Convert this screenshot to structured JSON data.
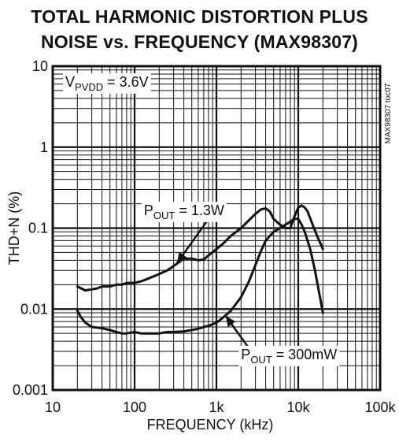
{
  "chart_data": {
    "type": "line",
    "title_line1": "TOTAL HARMONIC DISTORTION PLUS",
    "title_line2": "NOISE vs. FREQUENCY (MAX98307)",
    "xlabel": "FREQUENCY (kHz)",
    "ylabel": "THD+N (%)",
    "x_scale": "log",
    "y_scale": "log",
    "xlim": [
      10,
      100000
    ],
    "ylim": [
      0.001,
      10
    ],
    "x_ticks": [
      {
        "v": 10,
        "label": "10"
      },
      {
        "v": 100,
        "label": "100"
      },
      {
        "v": 1000,
        "label": "1k"
      },
      {
        "v": 10000,
        "label": "10k"
      },
      {
        "v": 100000,
        "label": "100k"
      }
    ],
    "y_ticks": [
      {
        "v": 0.001,
        "label": "0.001"
      },
      {
        "v": 0.01,
        "label": "0.01"
      },
      {
        "v": 0.1,
        "label": "0.1"
      },
      {
        "v": 1,
        "label": "1"
      },
      {
        "v": 10,
        "label": "10"
      }
    ],
    "grid": true,
    "condition": {
      "main": "V",
      "sub": "PVDD",
      "rest": " = 3.6V"
    },
    "side_text": "MAX98307 toc07",
    "series": [
      {
        "name_main": "P",
        "name_sub": "OUT",
        "name_rest": " = 1.3W",
        "points": [
          [
            20,
            0.019
          ],
          [
            25,
            0.017
          ],
          [
            30,
            0.0175
          ],
          [
            35,
            0.018
          ],
          [
            40,
            0.019
          ],
          [
            50,
            0.019
          ],
          [
            60,
            0.02
          ],
          [
            70,
            0.02
          ],
          [
            80,
            0.021
          ],
          [
            100,
            0.021
          ],
          [
            120,
            0.022
          ],
          [
            150,
            0.024
          ],
          [
            200,
            0.027
          ],
          [
            250,
            0.03
          ],
          [
            300,
            0.034
          ],
          [
            350,
            0.038
          ],
          [
            400,
            0.042
          ],
          [
            500,
            0.042
          ],
          [
            600,
            0.04
          ],
          [
            700,
            0.041
          ],
          [
            800,
            0.046
          ],
          [
            1000,
            0.055
          ],
          [
            1200,
            0.064
          ],
          [
            1500,
            0.08
          ],
          [
            2000,
            0.1
          ],
          [
            2500,
            0.125
          ],
          [
            3000,
            0.15
          ],
          [
            3500,
            0.17
          ],
          [
            4000,
            0.175
          ],
          [
            4500,
            0.16
          ],
          [
            5000,
            0.13
          ],
          [
            6000,
            0.11
          ],
          [
            7000,
            0.1
          ],
          [
            8000,
            0.1
          ],
          [
            9000,
            0.14
          ],
          [
            10000,
            0.18
          ],
          [
            11000,
            0.19
          ],
          [
            12000,
            0.18
          ],
          [
            13000,
            0.16
          ],
          [
            15000,
            0.11
          ],
          [
            17000,
            0.08
          ],
          [
            20000,
            0.055
          ]
        ]
      },
      {
        "name_main": "P",
        "name_sub": "OUT",
        "name_rest": " = 300mW",
        "points": [
          [
            20,
            0.0095
          ],
          [
            22,
            0.008
          ],
          [
            25,
            0.0068
          ],
          [
            30,
            0.006
          ],
          [
            40,
            0.0058
          ],
          [
            50,
            0.0055
          ],
          [
            60,
            0.0052
          ],
          [
            70,
            0.005
          ],
          [
            80,
            0.005
          ],
          [
            100,
            0.0052
          ],
          [
            120,
            0.005
          ],
          [
            150,
            0.005
          ],
          [
            200,
            0.005
          ],
          [
            250,
            0.0052
          ],
          [
            300,
            0.0052
          ],
          [
            400,
            0.0053
          ],
          [
            500,
            0.0055
          ],
          [
            600,
            0.0057
          ],
          [
            700,
            0.006
          ],
          [
            800,
            0.0062
          ],
          [
            1000,
            0.0068
          ],
          [
            1200,
            0.0078
          ],
          [
            1500,
            0.0095
          ],
          [
            2000,
            0.014
          ],
          [
            2500,
            0.022
          ],
          [
            3000,
            0.035
          ],
          [
            3500,
            0.052
          ],
          [
            4000,
            0.07
          ],
          [
            5000,
            0.09
          ],
          [
            6000,
            0.1
          ],
          [
            7000,
            0.11
          ],
          [
            8000,
            0.12
          ],
          [
            9000,
            0.13
          ],
          [
            10000,
            0.13
          ],
          [
            11000,
            0.11
          ],
          [
            12000,
            0.09
          ],
          [
            14000,
            0.055
          ],
          [
            16000,
            0.03
          ],
          [
            18000,
            0.016
          ],
          [
            20000,
            0.009
          ]
        ]
      }
    ],
    "annotations": [
      {
        "series": 0,
        "label_x": 130,
        "label_y": 0.145,
        "arrow_x": 330,
        "arrow_y": 0.037
      },
      {
        "series": 1,
        "label_x": 2000,
        "label_y": 0.0024,
        "arrow_x": 1300,
        "arrow_y": 0.0082
      }
    ]
  }
}
